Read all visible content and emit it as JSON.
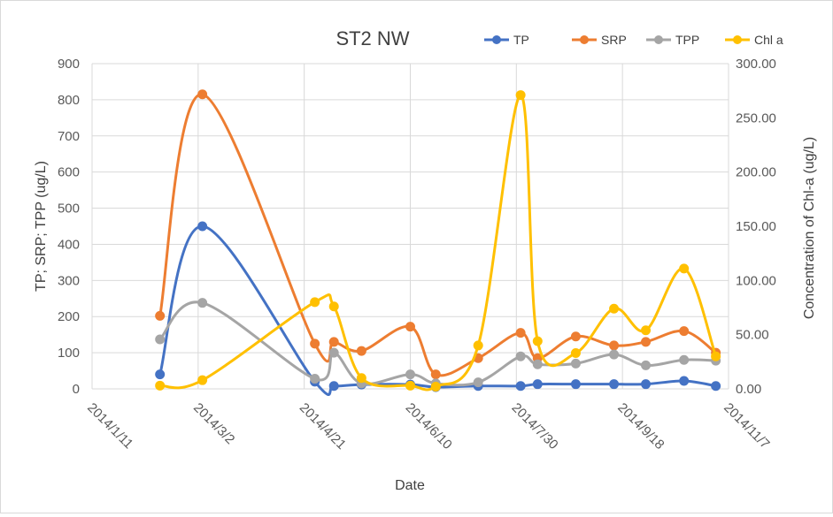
{
  "chart_data": {
    "type": "line",
    "title": "ST2 NW",
    "xlabel": "Date",
    "ylabel": "TP; SRP; TPP (ug/L)",
    "y2label": "Concentration of Chl-a (ug/L)",
    "xlim": [
      "2014-01-11",
      "2014-11-07"
    ],
    "xticks": [
      "2014/1/11",
      "2014/3/2",
      "2014/4/21",
      "2014/6/10",
      "2014/7/30",
      "2014/9/18",
      "2014/11/7"
    ],
    "ylim": [
      0,
      900
    ],
    "yticks": [
      "0",
      "100",
      "200",
      "300",
      "400",
      "500",
      "600",
      "700",
      "800",
      "900"
    ],
    "y2lim": [
      0,
      300
    ],
    "y2ticks": [
      "0.00",
      "50.00",
      "100.00",
      "150.00",
      "200.00",
      "250.00",
      "300.00"
    ],
    "grid": true,
    "legend_position": "top-right",
    "series": [
      {
        "name": "TP",
        "axis": "left",
        "color": "#4472c4",
        "points": [
          [
            "2014-02-12",
            40
          ],
          [
            "2014-03-04",
            450
          ],
          [
            "2014-04-26",
            20
          ],
          [
            "2014-05-05",
            8
          ],
          [
            "2014-05-18",
            12
          ],
          [
            "2014-06-10",
            12
          ],
          [
            "2014-06-22",
            5
          ],
          [
            "2014-07-12",
            8
          ],
          [
            "2014-08-01",
            8
          ],
          [
            "2014-08-09",
            13
          ],
          [
            "2014-08-27",
            13
          ],
          [
            "2014-09-14",
            13
          ],
          [
            "2014-09-29",
            13
          ],
          [
            "2014-10-17",
            22
          ],
          [
            "2014-11-01",
            8
          ]
        ]
      },
      {
        "name": "SRP",
        "axis": "left",
        "color": "#ed7d31",
        "points": [
          [
            "2014-02-12",
            202
          ],
          [
            "2014-03-04",
            815
          ],
          [
            "2014-04-26",
            125
          ],
          [
            "2014-05-05",
            130
          ],
          [
            "2014-05-18",
            105
          ],
          [
            "2014-06-10",
            172
          ],
          [
            "2014-06-22",
            40
          ],
          [
            "2014-07-12",
            85
          ],
          [
            "2014-08-01",
            155
          ],
          [
            "2014-08-09",
            85
          ],
          [
            "2014-08-27",
            145
          ],
          [
            "2014-09-14",
            120
          ],
          [
            "2014-09-29",
            130
          ],
          [
            "2014-10-17",
            160
          ],
          [
            "2014-11-01",
            100
          ]
        ]
      },
      {
        "name": "TPP",
        "axis": "left",
        "color": "#a5a5a5",
        "points": [
          [
            "2014-02-12",
            137
          ],
          [
            "2014-03-04",
            238
          ],
          [
            "2014-04-26",
            28
          ],
          [
            "2014-05-05",
            100
          ],
          [
            "2014-05-18",
            15
          ],
          [
            "2014-06-10",
            40
          ],
          [
            "2014-06-22",
            15
          ],
          [
            "2014-07-12",
            18
          ],
          [
            "2014-08-01",
            90
          ],
          [
            "2014-08-09",
            68
          ],
          [
            "2014-08-27",
            70
          ],
          [
            "2014-09-14",
            95
          ],
          [
            "2014-09-29",
            65
          ],
          [
            "2014-10-17",
            80
          ],
          [
            "2014-11-01",
            78
          ]
        ]
      },
      {
        "name": "Chl a",
        "axis": "right",
        "color": "#ffc000",
        "points": [
          [
            "2014-02-12",
            3
          ],
          [
            "2014-03-04",
            8
          ],
          [
            "2014-04-26",
            80
          ],
          [
            "2014-05-05",
            76
          ],
          [
            "2014-05-18",
            10
          ],
          [
            "2014-06-10",
            3
          ],
          [
            "2014-06-22",
            2
          ],
          [
            "2014-07-12",
            40
          ],
          [
            "2014-08-01",
            271
          ],
          [
            "2014-08-09",
            44
          ],
          [
            "2014-08-27",
            33
          ],
          [
            "2014-09-14",
            74
          ],
          [
            "2014-09-29",
            54
          ],
          [
            "2014-10-17",
            111
          ],
          [
            "2014-11-01",
            30
          ]
        ]
      }
    ]
  }
}
